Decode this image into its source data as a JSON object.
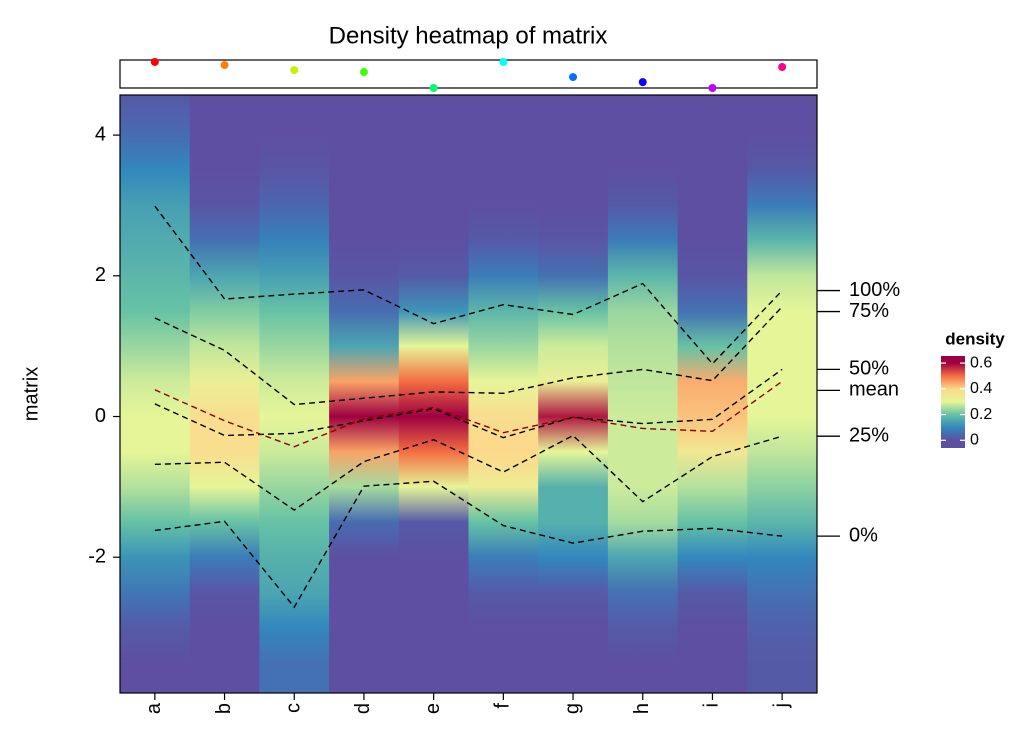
{
  "chart_data": {
    "type": "density_heatmap",
    "title": "Density heatmap of matrix",
    "ylabel": "matrix",
    "categories": [
      "a",
      "b",
      "c",
      "d",
      "e",
      "f",
      "g",
      "h",
      "i",
      "j"
    ],
    "ylim": [
      -3.93,
      4.57
    ],
    "yticks": [
      -2,
      0,
      2,
      4
    ],
    "density": {
      "y": [
        -3.5,
        -3,
        -2.5,
        -2,
        -1.5,
        -1,
        -0.5,
        0,
        0.5,
        1,
        1.5,
        2,
        2.5,
        3,
        3.5,
        4,
        4.5
      ],
      "columns": [
        [
          0,
          0.02,
          0.07,
          0.12,
          0.2,
          0.26,
          0.3,
          0.3,
          0.28,
          0.24,
          0.2,
          0.18,
          0.16,
          0.14,
          0.1,
          0.05,
          0.02
        ],
        [
          0,
          0,
          0.01,
          0.08,
          0.2,
          0.3,
          0.38,
          0.38,
          0.32,
          0.27,
          0.22,
          0.15,
          0.06,
          0.01,
          0,
          0,
          0
        ],
        [
          0.06,
          0.1,
          0.15,
          0.17,
          0.2,
          0.24,
          0.28,
          0.3,
          0.28,
          0.24,
          0.2,
          0.14,
          0.09,
          0.04,
          0.01,
          0,
          0
        ],
        [
          0,
          0,
          0,
          0,
          0.05,
          0.25,
          0.45,
          0.6,
          0.45,
          0.15,
          0.05,
          0.01,
          0,
          0,
          0,
          0,
          0
        ],
        [
          0,
          0,
          0,
          0,
          0.02,
          0.3,
          0.5,
          0.65,
          0.5,
          0.3,
          0.12,
          0.02,
          0,
          0,
          0,
          0,
          0
        ],
        [
          0,
          0,
          0.02,
          0.08,
          0.2,
          0.33,
          0.4,
          0.38,
          0.3,
          0.24,
          0.18,
          0.08,
          0.02,
          0,
          0,
          0,
          0
        ],
        [
          0,
          0,
          0.02,
          0.1,
          0.17,
          0.17,
          0.3,
          0.58,
          0.32,
          0.28,
          0.2,
          0.06,
          0.01,
          0,
          0,
          0,
          0
        ],
        [
          0,
          0.02,
          0.06,
          0.15,
          0.25,
          0.28,
          0.28,
          0.28,
          0.27,
          0.26,
          0.24,
          0.18,
          0.08,
          0.02,
          0,
          0,
          0
        ],
        [
          0,
          0,
          0.02,
          0.1,
          0.2,
          0.26,
          0.35,
          0.42,
          0.44,
          0.2,
          0.06,
          0.01,
          0,
          0,
          0,
          0,
          0
        ],
        [
          0.02,
          0.03,
          0.06,
          0.1,
          0.18,
          0.23,
          0.27,
          0.3,
          0.3,
          0.3,
          0.3,
          0.27,
          0.18,
          0.08,
          0.02,
          0,
          0
        ]
      ]
    },
    "color_scale": {
      "values": [
        0,
        0.1,
        0.2,
        0.3,
        0.4,
        0.5,
        0.6
      ],
      "colors": [
        "#5e4fa2",
        "#3288bd",
        "#66c2a5",
        "#e6f598",
        "#fdd88b",
        "#f46d43",
        "#9e0142"
      ]
    },
    "series": [
      {
        "name": "100%",
        "color": "#000000",
        "values": [
          2.99,
          1.67,
          1.74,
          1.8,
          1.32,
          1.59,
          1.45,
          1.89,
          0.75,
          1.79
        ]
      },
      {
        "name": "75%",
        "color": "#000000",
        "values": [
          1.4,
          0.94,
          0.17,
          0.26,
          0.35,
          0.33,
          0.55,
          0.67,
          0.51,
          1.56
        ]
      },
      {
        "name": "50%",
        "color": "#000000",
        "values": [
          0.18,
          -0.27,
          -0.24,
          -0.06,
          0.11,
          -0.3,
          -0.01,
          -0.1,
          -0.04,
          0.67
        ]
      },
      {
        "name": "mean",
        "color": "#8b0000",
        "values": [
          0.38,
          -0.06,
          -0.43,
          -0.03,
          0.13,
          -0.23,
          -0.01,
          -0.17,
          -0.21,
          0.5
        ]
      },
      {
        "name": "25%",
        "color": "#000000",
        "values": [
          -0.68,
          -0.65,
          -1.33,
          -0.64,
          -0.33,
          -0.79,
          -0.27,
          -1.21,
          -0.57,
          -0.28
        ]
      },
      {
        "name": "0%",
        "color": "#000000",
        "values": [
          -1.62,
          -1.49,
          -2.71,
          -0.99,
          -0.92,
          -1.55,
          -1.8,
          -1.63,
          -1.59,
          -1.7
        ]
      }
    ],
    "top_annotation": {
      "ylim": [
        0,
        1
      ],
      "values": [
        0.93,
        0.82,
        0.64,
        0.57,
        0.0,
        0.93,
        0.39,
        0.21,
        0.0,
        0.75
      ],
      "colors": [
        "#ff0000",
        "#ff8000",
        "#c8f000",
        "#40ff00",
        "#00ff70",
        "#00ffff",
        "#0070ff",
        "#1000ff",
        "#c000ff",
        "#ff0090"
      ]
    },
    "legend": {
      "title": "density",
      "lim": [
        -0.06,
        0.655
      ],
      "ticks": [
        0,
        0.2,
        0.4,
        0.6
      ]
    }
  }
}
